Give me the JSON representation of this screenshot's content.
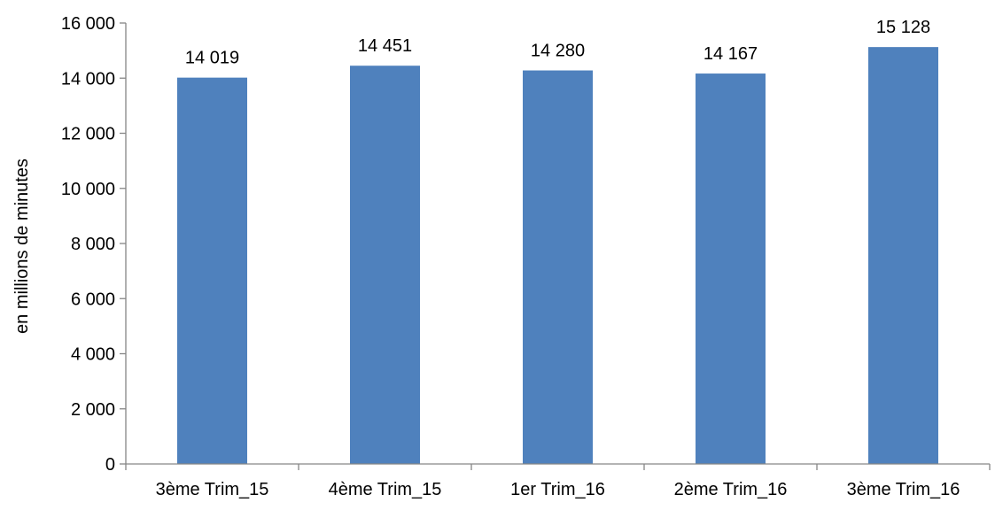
{
  "chart_data": {
    "type": "bar",
    "title": "",
    "xlabel": "",
    "ylabel": "en millions de minutes",
    "categories": [
      "3ème Trim_15",
      "4ème Trim_15",
      "1er Trim_16",
      "2ème Trim_16",
      "3ème Trim_16"
    ],
    "values": [
      14019,
      14451,
      14280,
      14167,
      15128
    ],
    "value_labels": [
      "14 019",
      "14 451",
      "14 280",
      "14 167",
      "15 128"
    ],
    "ylim": [
      0,
      16000
    ],
    "yticks": [
      0,
      2000,
      4000,
      6000,
      8000,
      10000,
      12000,
      14000,
      16000
    ],
    "ytick_labels": [
      "0",
      "2 000",
      "4 000",
      "6 000",
      "8 000",
      "10 000",
      "12 000",
      "14 000",
      "16 000"
    ],
    "grid": false,
    "legend": "none",
    "colors": {
      "bar": "#4F81BD",
      "axis": "#868686",
      "text": "#000000"
    }
  }
}
